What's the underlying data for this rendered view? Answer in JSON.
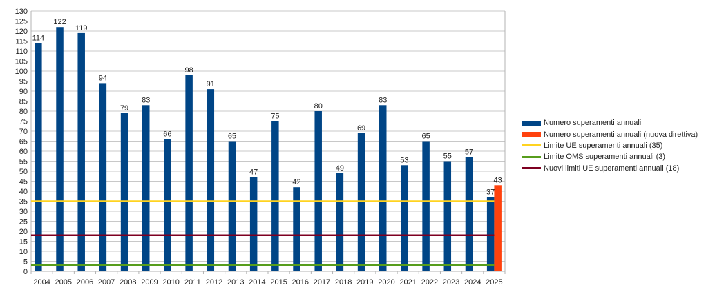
{
  "chart_data": {
    "type": "bar",
    "title": "",
    "xlabel": "",
    "ylabel": "",
    "ylim": [
      0,
      130
    ],
    "ytick_step": 5,
    "grid": true,
    "legend_position": "right",
    "categories": [
      "2004",
      "2005",
      "2006",
      "2007",
      "2008",
      "2009",
      "2010",
      "2011",
      "2012",
      "2013",
      "2014",
      "2015",
      "2016",
      "2017",
      "2018",
      "2019",
      "2020",
      "2021",
      "2022",
      "2023",
      "2024",
      "2025"
    ],
    "series": [
      {
        "name": "Numero superamenti annuali",
        "kind": "bar",
        "color": "#004586",
        "values": [
          114,
          122,
          119,
          94,
          79,
          83,
          66,
          98,
          91,
          65,
          47,
          75,
          42,
          80,
          49,
          69,
          83,
          53,
          65,
          55,
          57,
          37
        ]
      },
      {
        "name": "Numero superamenti annuali (nuova direttiva)",
        "kind": "bar",
        "color": "#ff420e",
        "values": [
          null,
          null,
          null,
          null,
          null,
          null,
          null,
          null,
          null,
          null,
          null,
          null,
          null,
          null,
          null,
          null,
          null,
          null,
          null,
          null,
          null,
          43
        ]
      },
      {
        "name": "Limite UE superamenti annuali (35)",
        "kind": "line",
        "color": "#ffd320",
        "value": 35
      },
      {
        "name": "Limite OMS superamenti annuali (3)",
        "kind": "line",
        "color": "#579d1c",
        "value": 3
      },
      {
        "name": "Nuovi limiti UE superamenti annuali (18)",
        "kind": "line",
        "color": "#7e0021",
        "value": 18
      }
    ]
  }
}
